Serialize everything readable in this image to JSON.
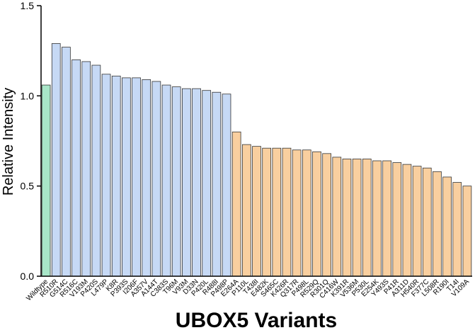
{
  "chart_data": {
    "type": "bar",
    "y_label": "Relative Intensity",
    "x_label": "UBOX5 Variants",
    "categories": [
      "Wildtype",
      "R510R",
      "G514C",
      "R516C",
      "V193M",
      "P420S",
      "L479P",
      "K8R",
      "P393S",
      "I206F",
      "A357V",
      "A144T",
      "C383S",
      "T96M",
      "V93M",
      "D33N",
      "P420L",
      "R488I",
      "P498P",
      "E264A",
      "P110L",
      "T438I",
      "E482K",
      "S465C",
      "K426R",
      "Q317R",
      "P498L",
      "R529Q",
      "R301Q",
      "C416W",
      "K391R",
      "V536M",
      "P530L",
      "E254K",
      "Y493S",
      "P41R",
      "A311D",
      "H540R",
      "F377C",
      "L508R",
      "R190I",
      "T14I",
      "V109A"
    ],
    "values": [
      1.06,
      1.29,
      1.27,
      1.2,
      1.19,
      1.17,
      1.12,
      1.11,
      1.1,
      1.1,
      1.09,
      1.08,
      1.06,
      1.05,
      1.04,
      1.04,
      1.03,
      1.02,
      1.01,
      0.8,
      0.73,
      0.72,
      0.71,
      0.71,
      0.71,
      0.7,
      0.7,
      0.69,
      0.68,
      0.66,
      0.65,
      0.65,
      0.65,
      0.64,
      0.64,
      0.63,
      0.62,
      0.61,
      0.6,
      0.58,
      0.55,
      0.52,
      0.5
    ],
    "colors": [
      "#a8e6c8",
      "#c6d9f5",
      "#c6d9f5",
      "#c6d9f5",
      "#c6d9f5",
      "#c6d9f5",
      "#c6d9f5",
      "#c6d9f5",
      "#c6d9f5",
      "#c6d9f5",
      "#c6d9f5",
      "#c6d9f5",
      "#c6d9f5",
      "#c6d9f5",
      "#c6d9f5",
      "#c6d9f5",
      "#c6d9f5",
      "#c6d9f5",
      "#c6d9f5",
      "#f9cf9f",
      "#f9cf9f",
      "#f9cf9f",
      "#f9cf9f",
      "#f9cf9f",
      "#f9cf9f",
      "#f9cf9f",
      "#f9cf9f",
      "#f9cf9f",
      "#f9cf9f",
      "#f9cf9f",
      "#f9cf9f",
      "#f9cf9f",
      "#f9cf9f",
      "#f9cf9f",
      "#f9cf9f",
      "#f9cf9f",
      "#f9cf9f",
      "#f9cf9f",
      "#f9cf9f",
      "#f9cf9f",
      "#f9cf9f",
      "#f9cf9f",
      "#f9cf9f"
    ],
    "ylim": [
      0,
      1.5
    ],
    "yticks": [
      {
        "value": 0,
        "label": "0.0"
      },
      {
        "value": 0.5,
        "label": "0.5"
      },
      {
        "value": 1,
        "label": "1.0"
      },
      {
        "value": 1.5,
        "label": "1.5"
      }
    ]
  }
}
